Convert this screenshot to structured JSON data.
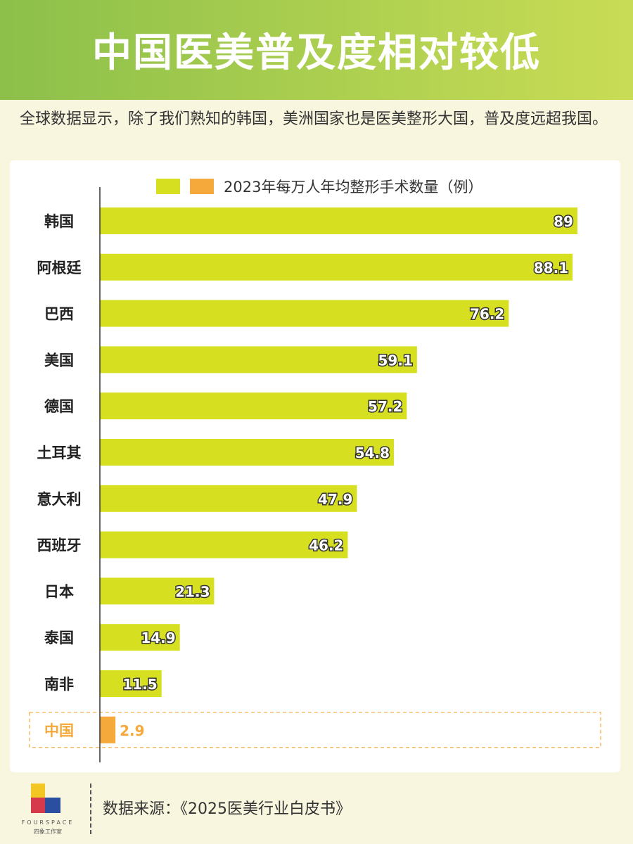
{
  "header": {
    "title": "中国医美普及度相对较低"
  },
  "subtitle": "全球数据显示，除了我们熟知的韩国，美洲国家也是医美整形大国，普及度远超我国。",
  "chart_data": {
    "type": "bar",
    "orientation": "horizontal",
    "categories": [
      "韩国",
      "阿根廷",
      "巴西",
      "美国",
      "德国",
      "土耳其",
      "意大利",
      "西班牙",
      "日本",
      "泰国",
      "南非",
      "中国"
    ],
    "values": [
      89,
      88.1,
      76.2,
      59.1,
      57.2,
      54.8,
      47.9,
      46.2,
      21.3,
      14.9,
      11.5,
      2.9
    ],
    "value_labels": [
      "89",
      "88.1",
      "76.2",
      "59.1",
      "57.2",
      "54.8",
      "47.9",
      "46.2",
      "21.3",
      "14.9",
      "11.5",
      "2.9"
    ],
    "legend": "2023年每万人年均整形手术数量（例）",
    "highlight": "中国",
    "colors": {
      "bar": "#d6e021",
      "highlight": "#f6a93b"
    },
    "xlim": [
      0,
      89
    ],
    "grid": false,
    "legend_position": "top"
  },
  "footer": {
    "source": "数据来源：《2025医美行业白皮书》",
    "logo_text": "FOURSPACE",
    "logo_subtext": "四象工作室"
  }
}
